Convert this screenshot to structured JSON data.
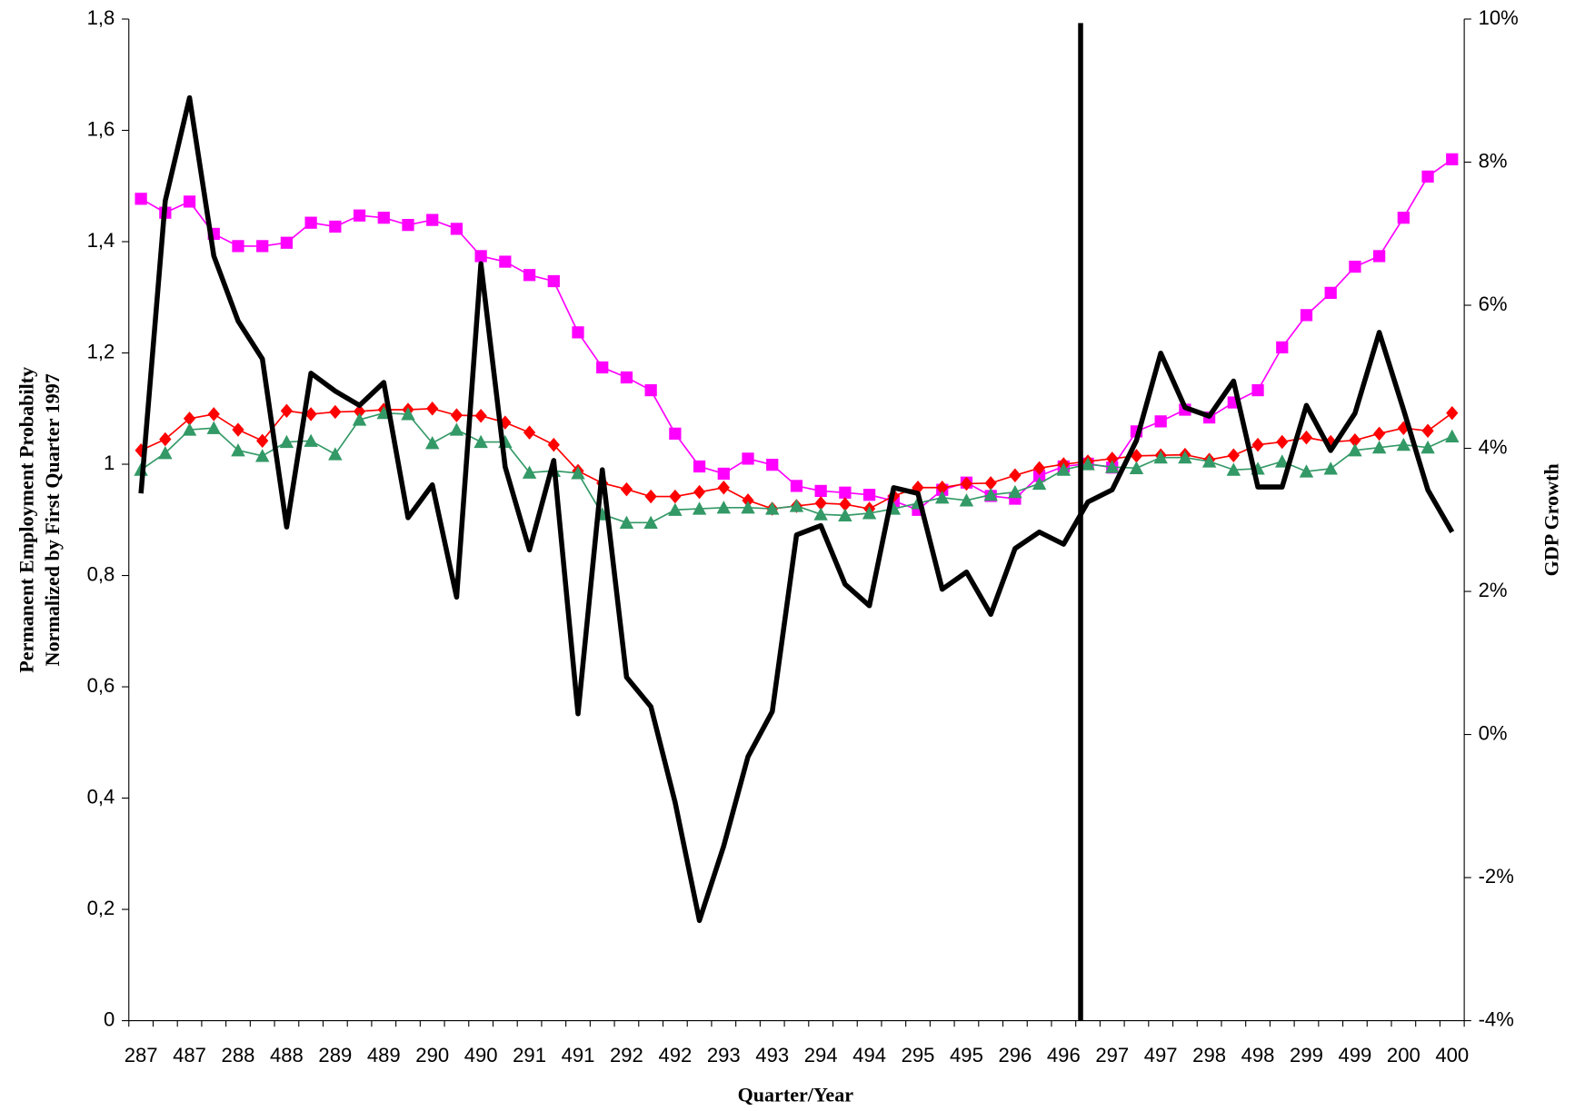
{
  "chart_data": {
    "type": "line",
    "xlabel": "Quarter/Year",
    "ylabel": [
      "Permanent Employment Probabilty",
      "Normalized by First Quarter 1997"
    ],
    "y2label": "GDP Growth",
    "categories": [
      "287",
      null,
      "487",
      null,
      "288",
      null,
      "488",
      null,
      "289",
      null,
      "489",
      null,
      "290",
      null,
      "490",
      null,
      "291",
      null,
      "491",
      null,
      "292",
      null,
      "492",
      null,
      "293",
      null,
      "493",
      null,
      "294",
      null,
      "494",
      null,
      "295",
      null,
      "495",
      null,
      "296",
      null,
      "496",
      null,
      "297",
      null,
      "497",
      null,
      "298",
      null,
      "498",
      null,
      "299",
      null,
      "499",
      null,
      "200",
      null,
      "400"
    ],
    "ylim": [
      0,
      1.8
    ],
    "yticks": [
      0,
      {
        "value": 0.2,
        "label": "0,2"
      },
      {
        "value": 0.4,
        "label": "0,4"
      },
      {
        "value": 0.6,
        "label": "0,6"
      },
      {
        "value": 0.8,
        "label": "0,8"
      },
      1,
      {
        "value": 1.2,
        "label": "1,2"
      },
      {
        "value": 1.4,
        "label": "1,4"
      },
      {
        "value": 1.6,
        "label": "1,6"
      },
      {
        "value": 1.8,
        "label": "1,8"
      }
    ],
    "y2lim": [
      -4,
      10
    ],
    "y2ticks": [
      {
        "value": -4,
        "label": "-4%"
      },
      {
        "value": -2,
        "label": "-2%"
      },
      {
        "value": 0,
        "label": "0%"
      },
      {
        "value": 2,
        "label": "2%"
      },
      {
        "value": 4,
        "label": "4%"
      },
      {
        "value": 6,
        "label": "6%"
      },
      {
        "value": 8,
        "label": "8%"
      },
      {
        "value": 10,
        "label": "10%"
      }
    ],
    "series": [
      {
        "color": "#ff00ff",
        "marker": "square",
        "line_width": 1.5,
        "values": [
          1.477,
          1.452,
          1.472,
          1.414,
          1.392,
          1.392,
          1.398,
          1.434,
          1.427,
          1.447,
          1.443,
          1.43,
          1.439,
          1.423,
          1.374,
          1.364,
          1.34,
          1.329,
          1.237,
          1.174,
          1.156,
          1.133,
          1.055,
          0.996,
          0.983,
          1.01,
          0.999,
          0.961,
          0.952,
          0.949,
          0.945,
          0.934,
          0.918,
          0.954,
          0.967,
          0.943,
          0.938,
          0.979,
          0.996,
          1.001,
          0.994,
          1.059,
          1.077,
          1.098,
          1.084,
          1.111,
          1.133,
          1.21,
          1.268,
          1.308,
          1.355,
          1.374,
          1.443,
          1.517,
          1.548
        ]
      },
      {
        "color": "#ff0000",
        "marker": "diamond",
        "line_width": 1.5,
        "values": [
          1.025,
          1.045,
          1.082,
          1.09,
          1.062,
          1.042,
          1.096,
          1.09,
          1.094,
          1.095,
          1.098,
          1.098,
          1.1,
          1.088,
          1.087,
          1.075,
          1.057,
          1.035,
          0.988,
          0.966,
          0.955,
          0.942,
          0.942,
          0.95,
          0.958,
          0.935,
          0.92,
          0.925,
          0.93,
          0.928,
          0.92,
          0.943,
          0.958,
          0.958,
          0.965,
          0.966,
          0.98,
          0.993,
          1.0,
          1.005,
          1.01,
          1.015,
          1.016,
          1.017,
          1.008,
          1.016,
          1.035,
          1.04,
          1.048,
          1.04,
          1.043,
          1.055,
          1.065,
          1.06,
          1.092
        ]
      },
      {
        "color": "#339966",
        "marker": "triangle",
        "line_width": 1.5,
        "values": [
          0.99,
          1.02,
          1.062,
          1.065,
          1.025,
          1.015,
          1.04,
          1.042,
          1.018,
          1.08,
          1.092,
          1.09,
          1.038,
          1.062,
          1.04,
          1.04,
          0.985,
          0.988,
          0.984,
          0.91,
          0.895,
          0.895,
          0.918,
          0.92,
          0.922,
          0.922,
          0.92,
          0.925,
          0.91,
          0.908,
          0.912,
          0.92,
          0.93,
          0.94,
          0.935,
          0.945,
          0.95,
          0.965,
          0.99,
          1.0,
          0.995,
          0.993,
          1.012,
          1.012,
          1.005,
          0.99,
          0.992,
          1.005,
          0.987,
          0.992,
          1.025,
          1.03,
          1.035,
          1.03,
          1.05
        ]
      },
      {
        "color": "#000000",
        "marker": "none",
        "line_width": 5,
        "axis": "y2",
        "values": [
          3.37,
          7.46,
          8.9,
          6.69,
          5.78,
          5.25,
          2.9,
          5.05,
          4.8,
          4.6,
          4.92,
          3.03,
          3.49,
          1.92,
          6.58,
          3.74,
          2.58,
          3.83,
          0.29,
          3.7,
          0.8,
          0.39,
          -0.95,
          -2.6,
          -1.56,
          -0.31,
          0.32,
          2.79,
          2.92,
          2.1,
          1.8,
          3.45,
          3.37,
          2.03,
          2.27,
          1.68,
          2.6,
          2.83,
          2.66,
          3.25,
          3.42,
          4.11,
          5.33,
          4.57,
          4.45,
          4.94,
          3.46,
          3.46,
          4.6,
          3.97,
          4.49,
          5.62,
          4.54,
          3.42,
          2.83
        ]
      }
    ]
  }
}
